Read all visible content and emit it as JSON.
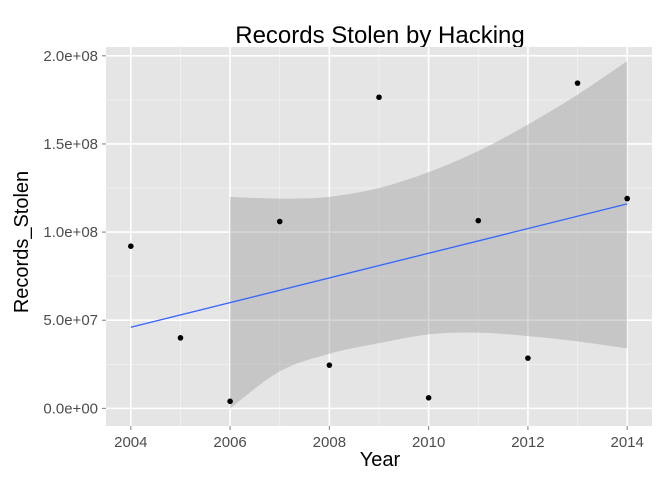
{
  "chart_data": {
    "type": "scatter",
    "title": "Records Stolen by Hacking",
    "xlabel": "Year",
    "ylabel": "Records_Stolen",
    "xlim": [
      2003.5,
      2014.5
    ],
    "ylim": [
      -10000000,
      205000000
    ],
    "grid": true,
    "x_ticks": [
      2004,
      2006,
      2008,
      2010,
      2012,
      2014
    ],
    "x_tick_labels": [
      "2004",
      "2006",
      "2008",
      "2010",
      "2012",
      "2014"
    ],
    "y_ticks": [
      0,
      50000000,
      100000000,
      150000000,
      200000000
    ],
    "y_tick_labels": [
      "0.0e+00",
      "5.0e+07",
      "1.0e+08",
      "1.5e+08",
      "2.0e+08"
    ],
    "points": [
      {
        "x": 2004,
        "y": 92000000
      },
      {
        "x": 2005,
        "y": 40000000
      },
      {
        "x": 2006,
        "y": 4000000
      },
      {
        "x": 2007,
        "y": 106000000
      },
      {
        "x": 2008,
        "y": 24500000
      },
      {
        "x": 2009,
        "y": 176500000
      },
      {
        "x": 2010,
        "y": 6000000
      },
      {
        "x": 2011,
        "y": 106500000
      },
      {
        "x": 2012,
        "y": 28500000
      },
      {
        "x": 2013,
        "y": 184500000
      },
      {
        "x": 2014,
        "y": 119000000
      }
    ],
    "trend_line": {
      "x": [
        2004,
        2014
      ],
      "y": [
        46000000,
        116000000
      ]
    },
    "confidence_band": {
      "x": [
        2006,
        2007,
        2008,
        2009,
        2010,
        2011,
        2012,
        2013,
        2014
      ],
      "upper": [
        120000000,
        119000000,
        120000000,
        125000000,
        134000000,
        146000000,
        161000000,
        178000000,
        197000000
      ],
      "lower": [
        0,
        21000000,
        31000000,
        37000000,
        42000000,
        43000000,
        41000000,
        38000000,
        34000000
      ]
    },
    "colors": {
      "panel_background": "#e5e5e5",
      "grid_major": "#ffffff",
      "points": "#000000",
      "trend_line": "#3366ff",
      "band": "#999999"
    }
  }
}
